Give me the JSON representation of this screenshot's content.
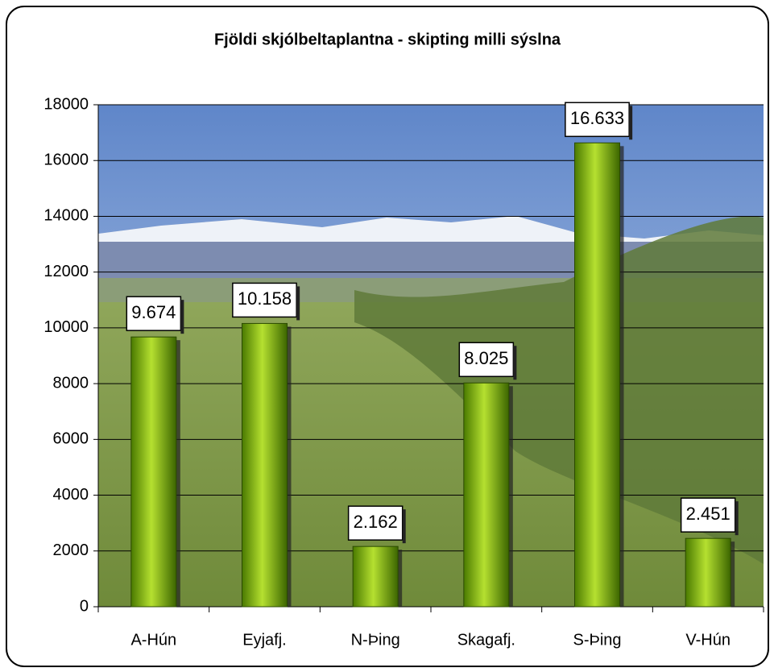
{
  "chart_data": {
    "type": "bar",
    "title": "Fjöldi skjólbeltaplantna - skipting milli sýslna",
    "categories": [
      "A-Hún",
      "Eyjafj.",
      "N-Þing",
      "Skagafj.",
      "S-Þing",
      "V-Hún"
    ],
    "values": [
      9674,
      10158,
      2162,
      8025,
      16633,
      2451
    ],
    "value_labels": [
      "9.674",
      "10.158",
      "2.162",
      "8.025",
      "16.633",
      "2.451"
    ],
    "color": "#7fb800",
    "ylim": [
      0,
      18000
    ],
    "yticks": [
      0,
      2000,
      4000,
      6000,
      8000,
      10000,
      12000,
      14000,
      16000,
      18000
    ],
    "grid": true
  }
}
